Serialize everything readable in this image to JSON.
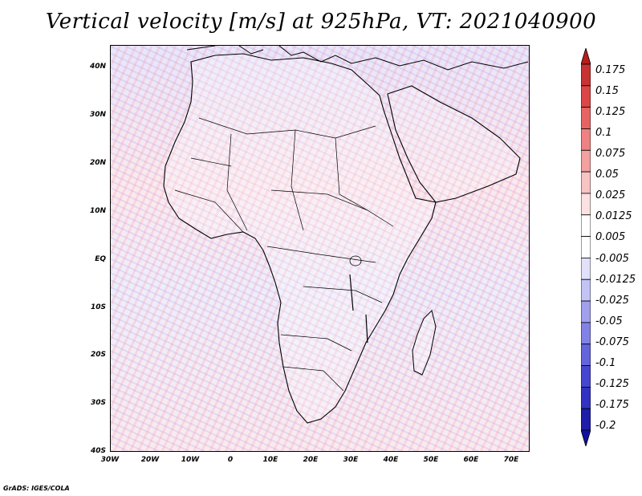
{
  "title": "Vertical velocity [m/s] at 925hPa, VT: 2021040900",
  "footer": "GrADS: IGES/COLA",
  "map": {
    "latitude_labels": [
      "40N",
      "30N",
      "20N",
      "10N",
      "EQ",
      "10S",
      "20S",
      "30S",
      "40S"
    ],
    "longitude_labels": [
      "30W",
      "20W",
      "10W",
      "0",
      "10E",
      "20E",
      "30E",
      "40E",
      "50E",
      "60E",
      "70E"
    ],
    "lat_range": [
      -40,
      45
    ],
    "lon_range": [
      -30,
      75
    ],
    "field": "vertical velocity (925hPa), shaded red = positive, blue = negative"
  },
  "colorbar": {
    "labels": [
      "0.175",
      "0.15",
      "0.125",
      "0.1",
      "0.075",
      "0.05",
      "0.025",
      "0.0125",
      "0.005",
      "-0.005",
      "-0.0125",
      "-0.025",
      "-0.05",
      "-0.075",
      "-0.1",
      "-0.125",
      "-0.175",
      "-0.2"
    ],
    "colors": [
      "#b41e1e",
      "#c83232",
      "#dc4646",
      "#e66464",
      "#ee8282",
      "#f2a0a0",
      "#f7c3c3",
      "#fbe1e1",
      "#ffffff",
      "#ffffff",
      "#e1e1fb",
      "#c3c3f5",
      "#a0a0ee",
      "#8282e6",
      "#6464dc",
      "#4646d2",
      "#3232c3",
      "#1e1eaa",
      "#1010a0"
    ]
  }
}
